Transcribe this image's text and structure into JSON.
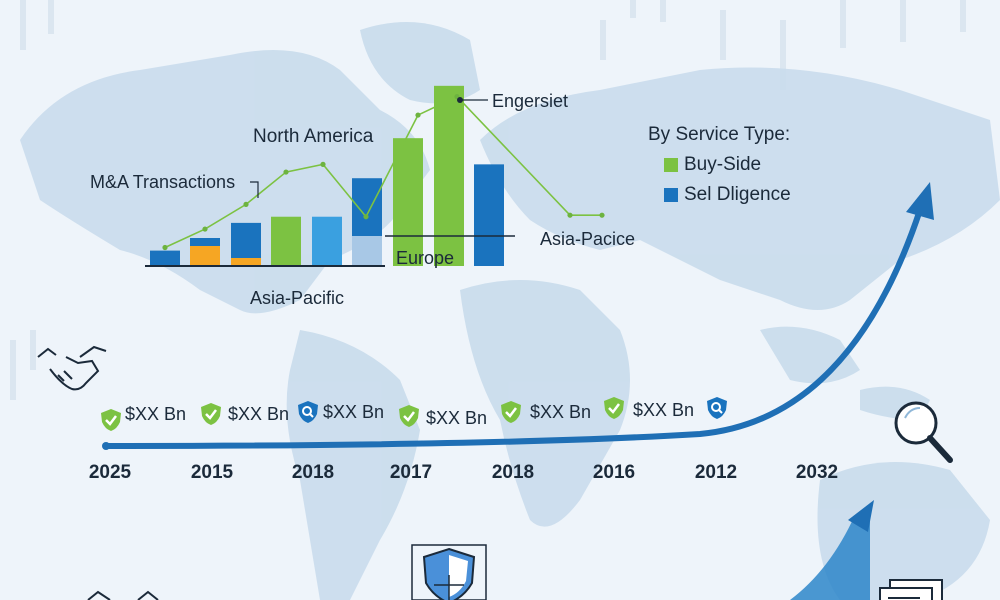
{
  "colors": {
    "background": "#eef4fa",
    "map": "#c9dcec",
    "green": "#7cc242",
    "blue": "#1a73be",
    "lightblue": "#3aa0e0",
    "orange": "#f6a623",
    "navy": "#1b2a3a"
  },
  "icons": {
    "handshake": "handshake-icon",
    "magnifier": "magnifier-icon",
    "shield_check": "shield-check-icon",
    "shield_search": "shield-search-icon",
    "shield_scales": "shield-scales-icon",
    "documents": "documents-icon",
    "growth_arrow": "growth-arrow-icon"
  },
  "chart_data": {
    "type": "bar",
    "labels": {
      "mna": "M&A Transactions",
      "north_america": "North America",
      "engersiet": "Engersiet",
      "europe": "Europe",
      "asia_pacific_inner": "Asia-Pacific",
      "asia_pacice": "Asia-Pacice"
    },
    "legend": {
      "title": "By Service Type:",
      "items": [
        {
          "label": "Buy-Side",
          "color": "#7cc242"
        },
        {
          "label": "Sel Dligence",
          "color": "#1a73be"
        }
      ]
    },
    "bars": [
      {
        "value": 1.0,
        "color": "#1a73be"
      },
      {
        "value": 1.6,
        "color": "#f6a623"
      },
      {
        "value": 2.8,
        "color": "#1a73be"
      },
      {
        "value": 3.2,
        "color": "#7cc242"
      },
      {
        "value": 3.2,
        "color": "#3aa0e0"
      },
      {
        "value": 5.7,
        "color": "#1a73be"
      },
      {
        "value": 8.3,
        "color": "#7cc242"
      },
      {
        "value": 11.7,
        "color": "#7cc242"
      },
      {
        "value": 6.6,
        "color": "#1a73be"
      }
    ],
    "line": [
      1.2,
      2.4,
      4.0,
      6.1,
      6.6,
      3.2,
      9.8,
      11.0,
      3.3,
      3.3
    ]
  },
  "timeline": {
    "values": [
      "$XX Bn",
      "$XX Bn",
      "$XX Bn",
      "$XX Bn",
      "$XX Bn",
      "$XX Bn"
    ],
    "years": [
      "2025",
      "2015",
      "2018",
      "2017",
      "2018",
      "2016",
      "2012",
      "2032"
    ]
  }
}
